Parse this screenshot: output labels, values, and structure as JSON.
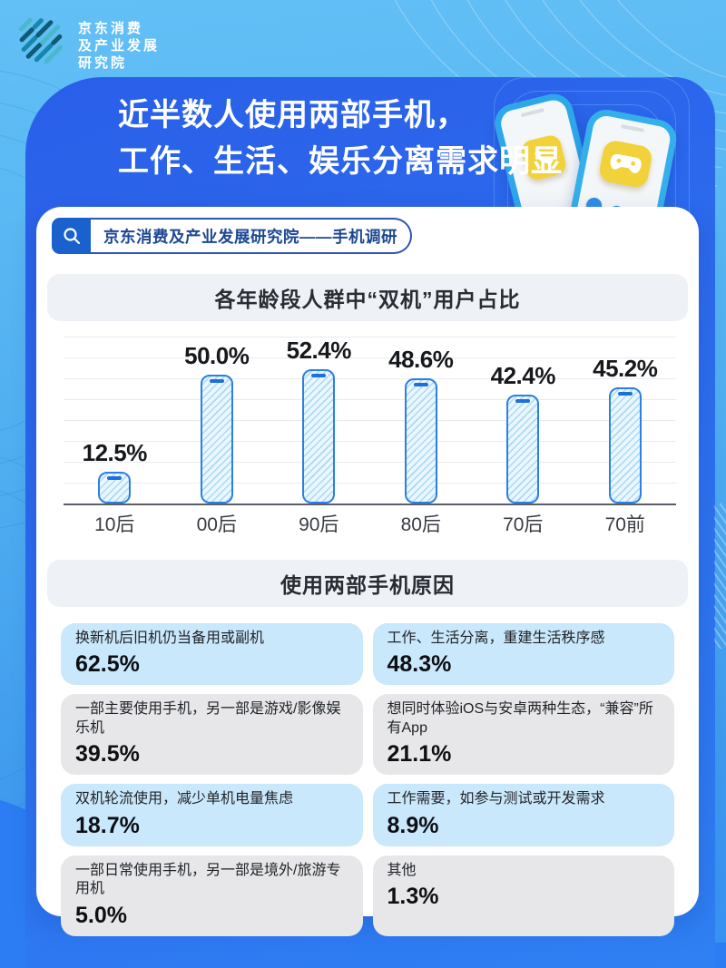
{
  "page": {
    "bg_top": "#63C0F6",
    "bg_bottom": "#3690F2",
    "wave_color": "#2C7DF3",
    "panel_top": "#2A5FE9",
    "panel_bottom": "#2F80F3",
    "accent": "#2E7FE3"
  },
  "logo": {
    "lines": [
      "京东消费",
      "及产业发展",
      "研究院"
    ]
  },
  "hero": {
    "title_line1": "近半数人使用两部手机，",
    "title_line2": "工作、生活、娱乐分离需求明显"
  },
  "search": {
    "text": "京东消费及产业发展研究院——手机调研"
  },
  "chart_data": {
    "type": "bar",
    "title": "各年龄段人群中“双机”用户占比",
    "categories": [
      "10后",
      "00后",
      "90后",
      "80后",
      "70后",
      "70前"
    ],
    "values": [
      12.5,
      50.0,
      52.4,
      48.6,
      42.4,
      45.2
    ],
    "value_labels": [
      "12.5%",
      "50.0%",
      "52.4%",
      "48.6%",
      "42.4%",
      "45.2%"
    ],
    "unit": "%",
    "xlabel": "",
    "ylabel": "",
    "ylim": [
      0,
      60
    ],
    "grid": true,
    "legend": false,
    "bar_style": "phone-shaped bars, light-blue diagonal hatch fill, blue outline, blue notch at top",
    "accent_color": "#2E7FE3"
  },
  "reasons": {
    "title": "使用两部手机原因",
    "items": [
      {
        "label": "换新机后旧机仍当备用或副机",
        "value": "62.5%",
        "tone": "blue"
      },
      {
        "label": "工作、生活分离，重建生活秩序感",
        "value": "48.3%",
        "tone": "blue"
      },
      {
        "label": "一部主要使用手机，另一部是游戏/影像娱乐机",
        "value": "39.5%",
        "tone": "gray"
      },
      {
        "label": "想同时体验iOS与安卓两种生态，“兼容”所有App",
        "value": "21.1%",
        "tone": "gray"
      },
      {
        "label": "双机轮流使用，减少单机电量焦虑",
        "value": "18.7%",
        "tone": "blue"
      },
      {
        "label": "工作需要，如参与测试或开发需求",
        "value": "8.9%",
        "tone": "blue"
      },
      {
        "label": "一部日常使用手机，另一部是境外/旅游专用机",
        "value": "5.0%",
        "tone": "gray"
      },
      {
        "label": "其他",
        "value": "1.3%",
        "tone": "gray"
      }
    ]
  }
}
